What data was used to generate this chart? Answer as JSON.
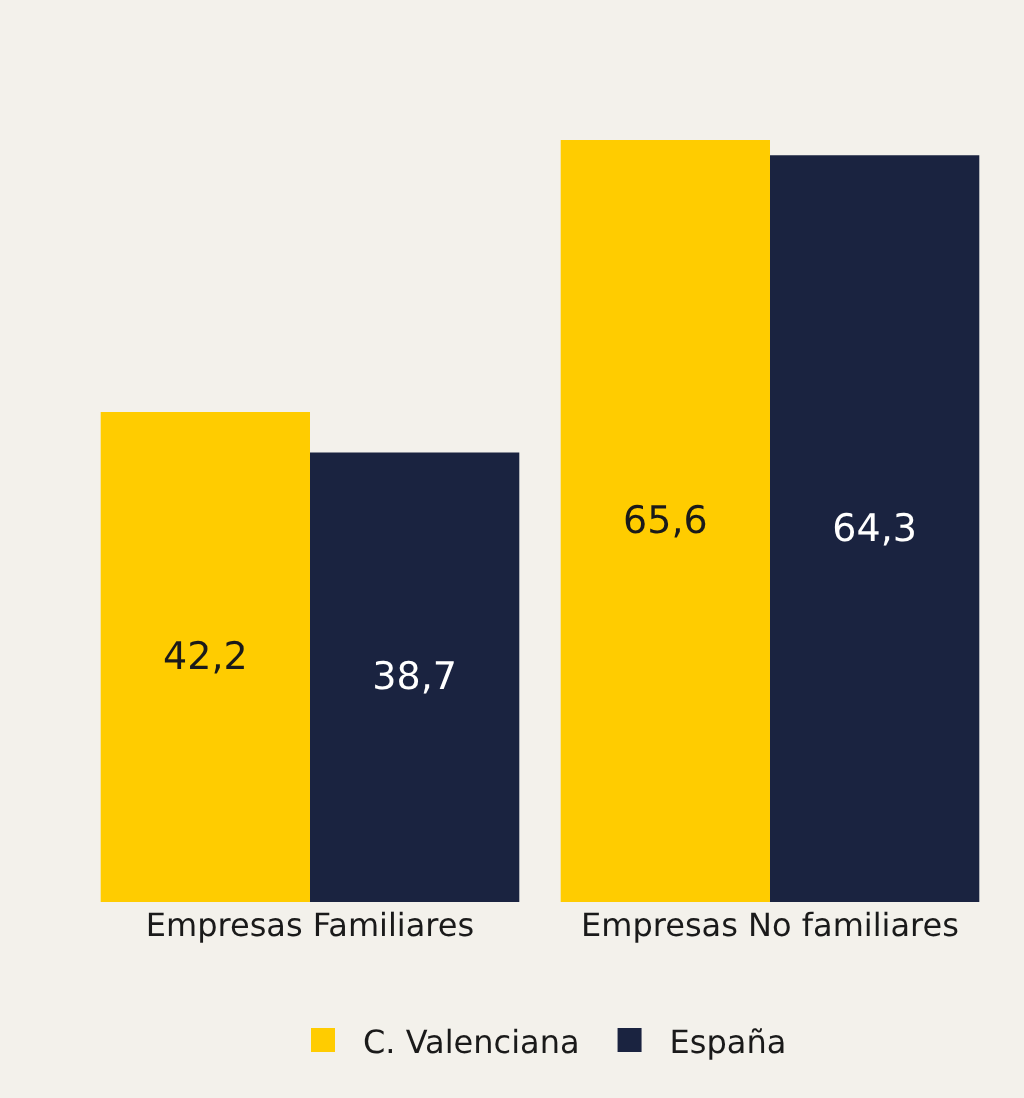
{
  "chart_data": {
    "type": "bar",
    "categories": [
      "Empresas Familiares",
      "Empresas No familiares"
    ],
    "series": [
      {
        "name": "C. Valenciana",
        "color": "#ffcc00",
        "values": [
          42.2,
          65.6
        ],
        "value_labels": [
          "42,2",
          "65,6"
        ]
      },
      {
        "name": "España",
        "color": "#1a2340",
        "values": [
          38.7,
          64.3
        ],
        "value_labels": [
          "38,7",
          "64,3"
        ]
      }
    ],
    "legend": "bottom"
  }
}
